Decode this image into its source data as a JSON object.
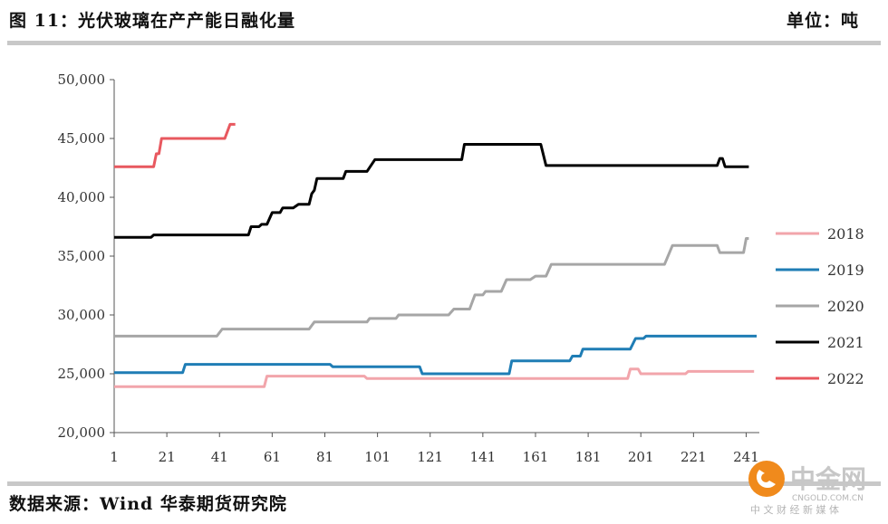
{
  "header": {
    "title": "图 11：光伏玻璃在产产能日融化量",
    "unit": "单位：吨"
  },
  "footer": {
    "source": "数据来源：Wind 华泰期货研究院"
  },
  "watermark": {
    "name": "中金网",
    "domain": "CNGOLD.COM.CN",
    "tagline": "中 文 财 经 新 媒 体"
  },
  "colors": {
    "2018": "#f2a5ab",
    "2019": "#1f7db5",
    "2020": "#a6a6a6",
    "2021": "#000000",
    "2022": "#e8585f"
  },
  "chart_data": {
    "type": "line",
    "xlim": [
      1,
      246
    ],
    "ylim": [
      20000,
      50000
    ],
    "xticks": [
      1,
      21,
      41,
      61,
      81,
      101,
      121,
      141,
      161,
      181,
      201,
      221,
      241
    ],
    "yticks": [
      20000,
      25000,
      30000,
      35000,
      40000,
      45000,
      50000
    ],
    "ytick_labels": [
      "20,000",
      "25,000",
      "30,000",
      "35,000",
      "40,000",
      "45,000",
      "50,000"
    ],
    "legend_position": "right",
    "grid": false,
    "series": [
      {
        "name": "2018",
        "key": "2018",
        "points": [
          [
            1,
            23900
          ],
          [
            58,
            23900
          ],
          [
            59,
            24800
          ],
          [
            96,
            24800
          ],
          [
            97,
            24600
          ],
          [
            196,
            24600
          ],
          [
            197,
            25400
          ],
          [
            200,
            25400
          ],
          [
            201,
            25000
          ],
          [
            218,
            25000
          ],
          [
            219,
            25200
          ],
          [
            244,
            25200
          ]
        ]
      },
      {
        "name": "2019",
        "key": "2019",
        "points": [
          [
            1,
            25100
          ],
          [
            27,
            25100
          ],
          [
            28,
            25800
          ],
          [
            83,
            25800
          ],
          [
            84,
            25600
          ],
          [
            117,
            25600
          ],
          [
            118,
            25000
          ],
          [
            151,
            25000
          ],
          [
            152,
            26100
          ],
          [
            174,
            26100
          ],
          [
            175,
            26500
          ],
          [
            178,
            26500
          ],
          [
            179,
            27100
          ],
          [
            197,
            27100
          ],
          [
            199,
            28000
          ],
          [
            202,
            28000
          ],
          [
            203,
            28200
          ],
          [
            245,
            28200
          ]
        ]
      },
      {
        "name": "2020",
        "key": "2020",
        "points": [
          [
            1,
            28200
          ],
          [
            40,
            28200
          ],
          [
            42,
            28800
          ],
          [
            75,
            28800
          ],
          [
            77,
            29400
          ],
          [
            97,
            29400
          ],
          [
            98,
            29700
          ],
          [
            108,
            29700
          ],
          [
            109,
            30000
          ],
          [
            128,
            30000
          ],
          [
            130,
            30500
          ],
          [
            136,
            30500
          ],
          [
            138,
            31700
          ],
          [
            141,
            31700
          ],
          [
            142,
            32000
          ],
          [
            148,
            32000
          ],
          [
            150,
            33000
          ],
          [
            159,
            33000
          ],
          [
            161,
            33300
          ],
          [
            165,
            33300
          ],
          [
            167,
            34300
          ],
          [
            210,
            34300
          ],
          [
            213,
            35900
          ],
          [
            230,
            35900
          ],
          [
            231,
            35300
          ],
          [
            240,
            35300
          ],
          [
            241,
            36500
          ],
          [
            242,
            36500
          ]
        ]
      },
      {
        "name": "2021",
        "key": "2021",
        "points": [
          [
            1,
            36600
          ],
          [
            15,
            36600
          ],
          [
            16,
            36800
          ],
          [
            52,
            36800
          ],
          [
            53,
            37500
          ],
          [
            56,
            37500
          ],
          [
            57,
            37700
          ],
          [
            59,
            37700
          ],
          [
            61,
            38700
          ],
          [
            64,
            38700
          ],
          [
            65,
            39100
          ],
          [
            69,
            39100
          ],
          [
            71,
            39400
          ],
          [
            75,
            39400
          ],
          [
            76,
            40300
          ],
          [
            77,
            40600
          ],
          [
            78,
            41600
          ],
          [
            88,
            41600
          ],
          [
            89,
            42200
          ],
          [
            97,
            42200
          ],
          [
            100,
            43200
          ],
          [
            133,
            43200
          ],
          [
            134,
            44500
          ],
          [
            163,
            44500
          ],
          [
            165,
            42700
          ],
          [
            230,
            42700
          ],
          [
            231,
            43300
          ],
          [
            232,
            43300
          ],
          [
            233,
            42600
          ],
          [
            242,
            42600
          ]
        ]
      },
      {
        "name": "2022",
        "key": "2022",
        "points": [
          [
            1,
            42600
          ],
          [
            16,
            42600
          ],
          [
            17,
            43700
          ],
          [
            18,
            43700
          ],
          [
            19,
            45000
          ],
          [
            43,
            45000
          ],
          [
            45,
            46200
          ],
          [
            47,
            46200
          ]
        ]
      }
    ]
  }
}
